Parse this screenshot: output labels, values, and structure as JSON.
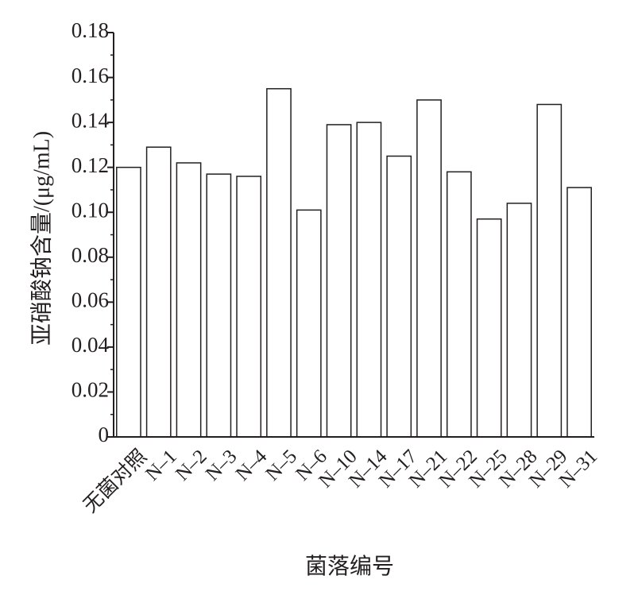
{
  "chart_data": {
    "type": "bar",
    "x_label": "菌落编号",
    "y_label": "亚硝酸钠含量/(μg/mL)",
    "categories": [
      "无菌对照",
      "N–1",
      "N–2",
      "N–3",
      "N–4",
      "N–5",
      "N–6",
      "N–10",
      "N–14",
      "N–17",
      "N–21",
      "N–22",
      "N–25",
      "N–28",
      "N–29",
      "N–31"
    ],
    "values": [
      0.12,
      0.129,
      0.122,
      0.117,
      0.116,
      0.155,
      0.101,
      0.139,
      0.14,
      0.125,
      0.15,
      0.118,
      0.097,
      0.104,
      0.148,
      0.111
    ],
    "color": "#ffffff",
    "ylim": [
      0,
      0.18
    ],
    "yticks": [
      0,
      0.02,
      0.04,
      0.06,
      0.08,
      {
        "value": 0.1,
        "label": "0.10"
      },
      0.12,
      0.14,
      0.16,
      0.18
    ],
    "grid": false
  }
}
